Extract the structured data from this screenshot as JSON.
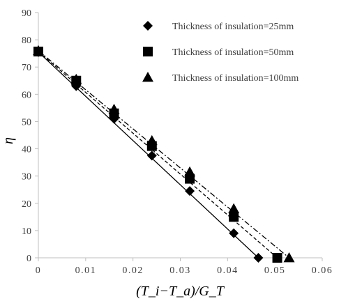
{
  "chart_data": {
    "type": "scatter",
    "title": "",
    "xlabel": "(T_i−T_a)/G_T",
    "ylabel": "η",
    "xlim": [
      0,
      0.06
    ],
    "ylim": [
      0,
      90
    ],
    "x_ticks": [
      "0",
      "0.01",
      "0.02",
      "0.03",
      "0.04",
      "0.05",
      "0.06"
    ],
    "y_ticks": [
      "0",
      "10",
      "20",
      "30",
      "40",
      "50",
      "60",
      "70",
      "80",
      "90"
    ],
    "grid": false,
    "legend_position": "top-right",
    "series": [
      {
        "name": "Thickness of insulation=25mm",
        "marker": "diamond",
        "line_style": "solid",
        "x": [
          0,
          0.008,
          0.016,
          0.024,
          0.032,
          0.0413,
          0.0465
        ],
        "y": [
          75.5,
          63,
          51,
          37.5,
          24.5,
          9,
          0
        ],
        "fit": {
          "x": [
            0,
            0.0465
          ],
          "y": [
            75.5,
            0
          ]
        }
      },
      {
        "name": "Thickness of insulation=50mm",
        "marker": "square",
        "line_style": "dashed",
        "x": [
          0,
          0.008,
          0.016,
          0.024,
          0.032,
          0.0413,
          0.0505
        ],
        "y": [
          75.7,
          65,
          53,
          41,
          29,
          15,
          0
        ],
        "fit": {
          "x": [
            0,
            0.0505
          ],
          "y": [
            75.7,
            0
          ]
        }
      },
      {
        "name": "Thickness of insulation=100mm",
        "marker": "triangle",
        "line_style": "dashdot",
        "x": [
          0,
          0.008,
          0.016,
          0.024,
          0.032,
          0.0413,
          0.053
        ],
        "y": [
          76,
          65.5,
          54.5,
          43,
          31.5,
          18,
          0
        ],
        "fit": {
          "x": [
            0,
            0.053
          ],
          "y": [
            76,
            0
          ]
        }
      }
    ]
  }
}
